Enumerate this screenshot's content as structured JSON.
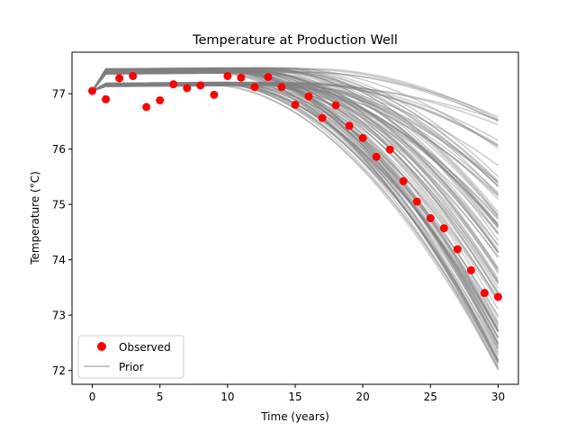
{
  "chart_data": {
    "type": "line",
    "title": "Temperature at Production Well",
    "xlabel": "Time (years)",
    "ylabel": "Temperature (°C)",
    "xlim": [
      -1.5,
      31.5
    ],
    "ylim": [
      71.75,
      77.75
    ],
    "xticks": [
      0,
      5,
      10,
      15,
      20,
      25,
      30
    ],
    "yticks": [
      72,
      73,
      74,
      75,
      76,
      77
    ],
    "grid": false,
    "legend_position": "lower-left",
    "series": [
      {
        "name": "Observed",
        "kind": "scatter",
        "color": "#ff0000",
        "x": [
          0,
          1,
          2,
          3,
          4,
          5,
          6,
          7,
          8,
          9,
          10,
          11,
          12,
          13,
          14,
          15,
          16,
          17,
          18,
          19,
          20,
          21,
          22,
          23,
          24,
          25,
          26,
          27,
          28,
          29,
          30
        ],
        "y": [
          77.05,
          76.9,
          77.28,
          77.32,
          76.76,
          76.88,
          77.17,
          77.1,
          77.15,
          76.98,
          77.32,
          77.29,
          77.12,
          77.3,
          77.12,
          76.8,
          76.95,
          76.56,
          76.79,
          76.42,
          76.2,
          75.86,
          75.99,
          75.42,
          75.05,
          74.75,
          74.57,
          74.19,
          73.81,
          73.4,
          73.33
        ]
      },
      {
        "name": "Prior",
        "kind": "ensemble",
        "color": "#808080",
        "member_count": 110,
        "x_start": 0,
        "x_end": 30,
        "y_start": 77.05,
        "plateau_range": [
          77.13,
          77.45
        ],
        "break_year_range": [
          9,
          16
        ],
        "final_range": [
          72.0,
          76.7
        ]
      }
    ]
  },
  "legend": {
    "observed_label": "Observed",
    "prior_label": "Prior"
  }
}
